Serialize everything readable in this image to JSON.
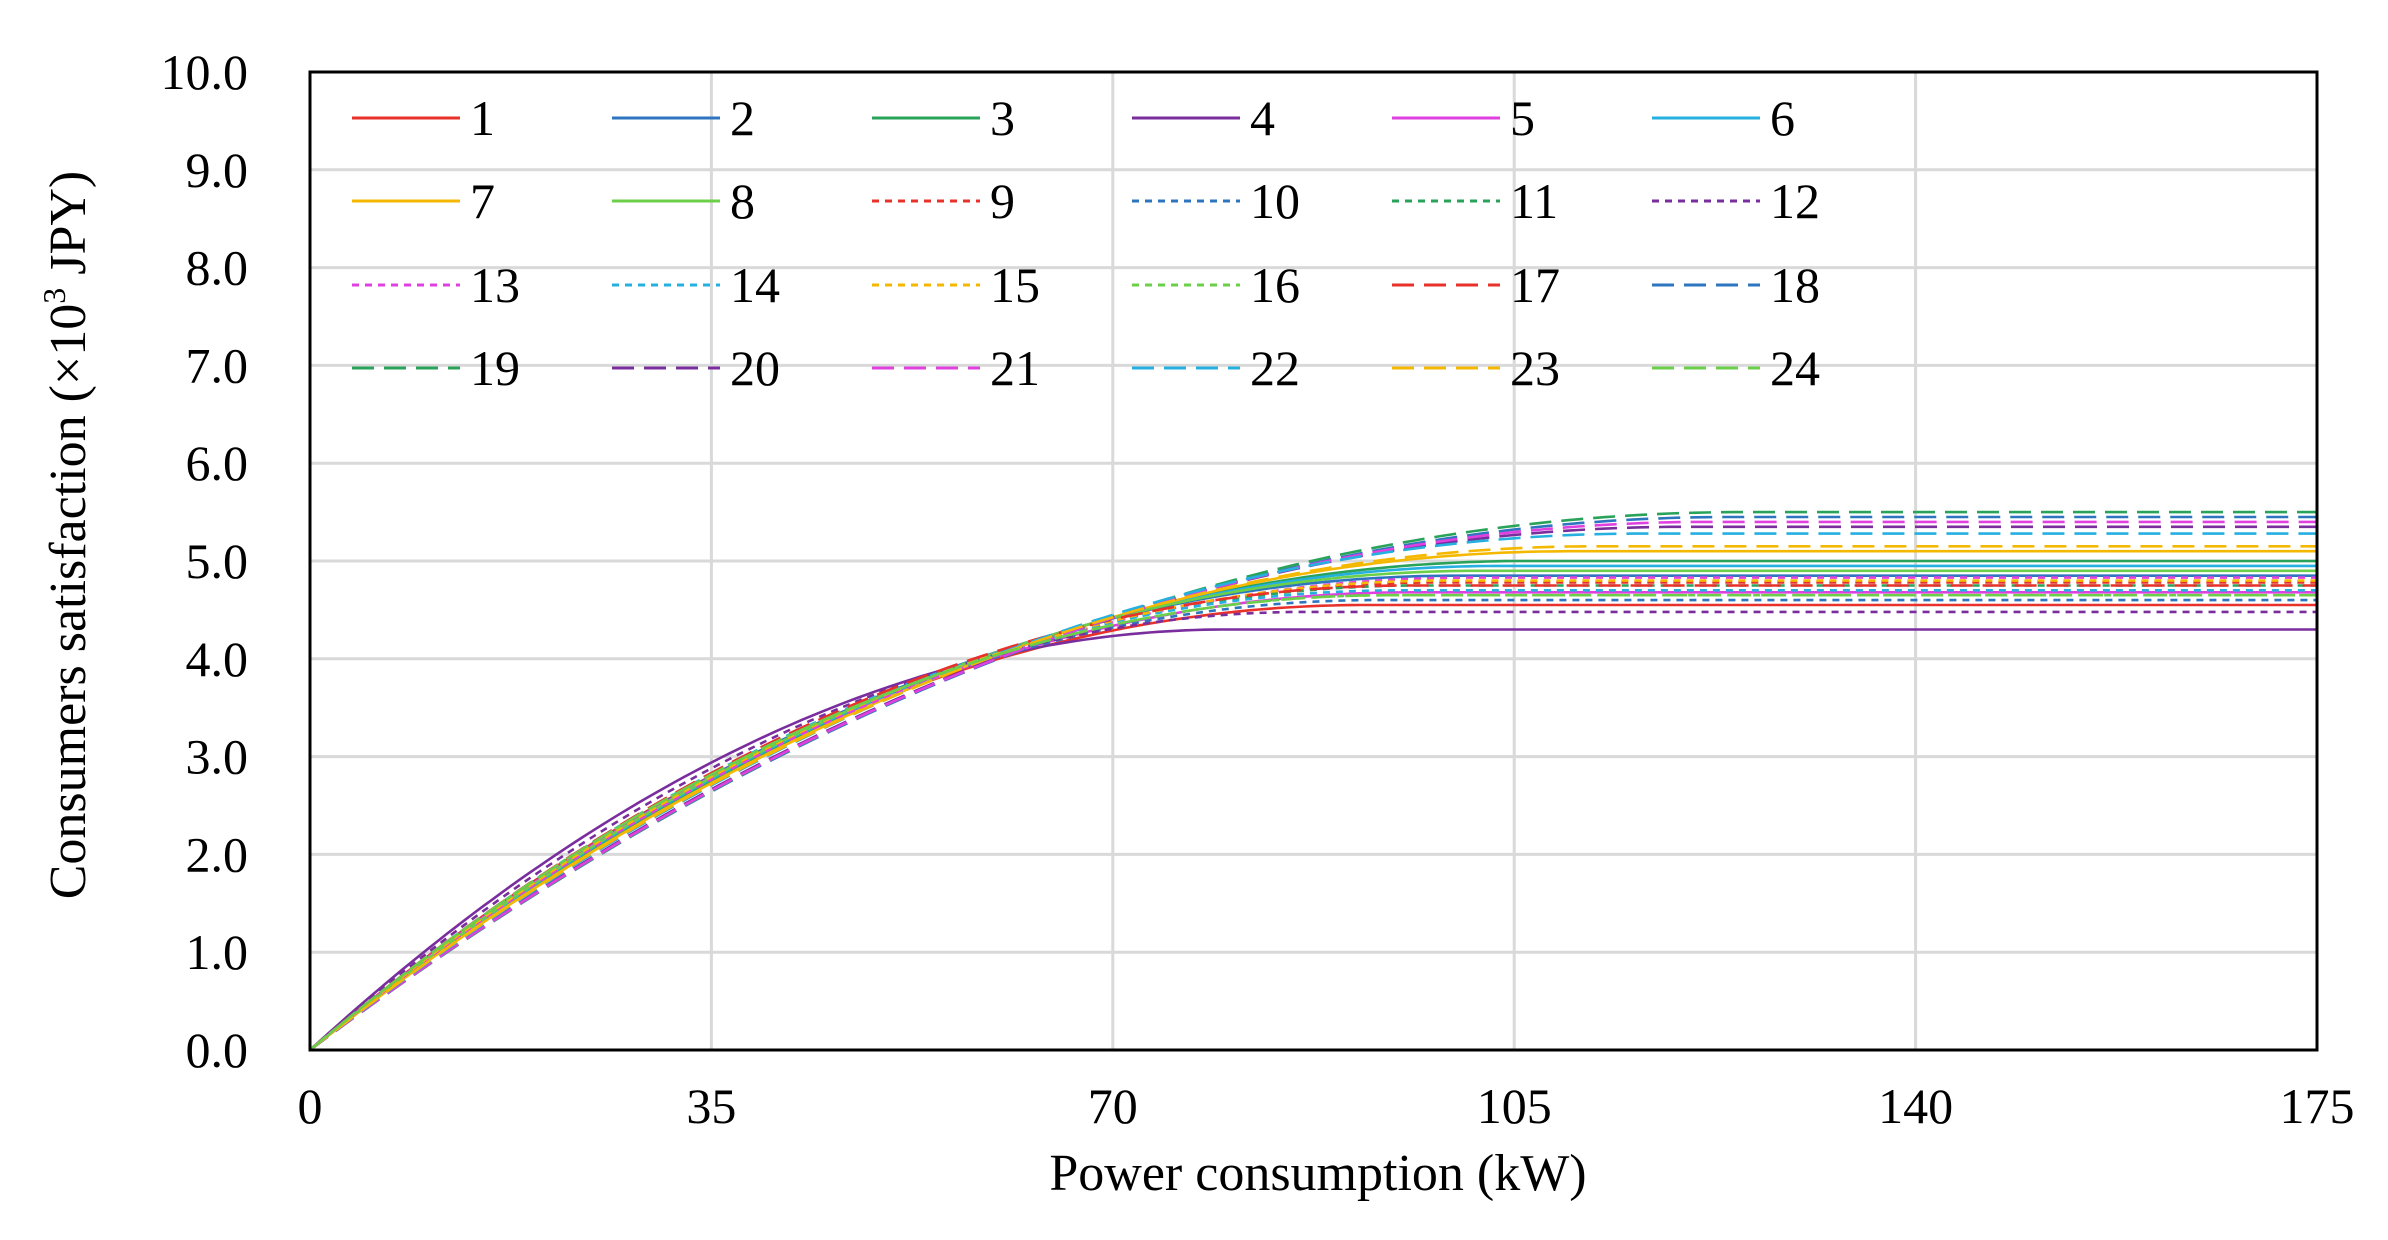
{
  "chart_data": {
    "type": "line",
    "title": "",
    "xlabel": "Power consumption (kW)",
    "ylabel_main": "Consumers satisfaction (×10",
    "ylabel_sup": "3",
    "ylabel_tail": " JPY)",
    "xlim": [
      0,
      175
    ],
    "ylim": [
      0,
      10
    ],
    "xticks": [
      0,
      35,
      70,
      105,
      140,
      175
    ],
    "xtick_labels": [
      "0",
      "35",
      "70",
      "105",
      "140",
      "175"
    ],
    "yticks": [
      0,
      1,
      2,
      3,
      4,
      5,
      6,
      7,
      8,
      9,
      10
    ],
    "ytick_labels": [
      "0.0",
      "1.0",
      "2.0",
      "3.0",
      "4.0",
      "5.0",
      "6.0",
      "7.0",
      "8.0",
      "9.0",
      "10.0"
    ],
    "grid": true,
    "legend_position": "top-left, inside, 6 columns",
    "curve_model": "quadratic rising to saturation: y = smax*(1-(1-x/xmax)^2) for x<=xmax, then y = smax",
    "series": [
      {
        "name": "1",
        "color": "#e8312a",
        "style": "solid",
        "xmax": 92,
        "smax": 4.55
      },
      {
        "name": "2",
        "color": "#2e75c0",
        "style": "solid",
        "xmax": 100,
        "smax": 4.85
      },
      {
        "name": "3",
        "color": "#2aa35a",
        "style": "solid",
        "xmax": 106,
        "smax": 5.0
      },
      {
        "name": "4",
        "color": "#7a2e9e",
        "style": "solid",
        "xmax": 80,
        "smax": 4.3
      },
      {
        "name": "5",
        "color": "#e040e0",
        "style": "solid",
        "xmax": 96,
        "smax": 4.68
      },
      {
        "name": "6",
        "color": "#25b0e0",
        "style": "solid",
        "xmax": 104,
        "smax": 4.95
      },
      {
        "name": "7",
        "color": "#f5b800",
        "style": "solid",
        "xmax": 110,
        "smax": 5.1
      },
      {
        "name": "8",
        "color": "#6ccf4a",
        "style": "solid",
        "xmax": 102,
        "smax": 4.9
      },
      {
        "name": "9",
        "color": "#e8312a",
        "style": "dotted",
        "xmax": 98,
        "smax": 4.78
      },
      {
        "name": "10",
        "color": "#2e75c0",
        "style": "dotted",
        "xmax": 93,
        "smax": 4.6
      },
      {
        "name": "11",
        "color": "#2aa35a",
        "style": "dotted",
        "xmax": 97,
        "smax": 4.75
      },
      {
        "name": "12",
        "color": "#7a2e9e",
        "style": "dotted",
        "xmax": 87,
        "smax": 4.48
      },
      {
        "name": "13",
        "color": "#e040e0",
        "style": "dotted",
        "xmax": 101,
        "smax": 4.83
      },
      {
        "name": "14",
        "color": "#25b0e0",
        "style": "dotted",
        "xmax": 95,
        "smax": 4.7
      },
      {
        "name": "15",
        "color": "#f5b800",
        "style": "dotted",
        "xmax": 99,
        "smax": 4.8
      },
      {
        "name": "16",
        "color": "#6ccf4a",
        "style": "dotted",
        "xmax": 94,
        "smax": 4.65
      },
      {
        "name": "17",
        "color": "#e8312a",
        "style": "dashed",
        "xmax": 96,
        "smax": 4.75
      },
      {
        "name": "18",
        "color": "#2e75c0",
        "style": "dashed",
        "xmax": 124,
        "smax": 5.45
      },
      {
        "name": "19",
        "color": "#2aa35a",
        "style": "dashed",
        "xmax": 125,
        "smax": 5.5
      },
      {
        "name": "20",
        "color": "#7a2e9e",
        "style": "dashed",
        "xmax": 120,
        "smax": 5.35
      },
      {
        "name": "21",
        "color": "#e040e0",
        "style": "dashed",
        "xmax": 122,
        "smax": 5.4
      },
      {
        "name": "22",
        "color": "#25b0e0",
        "style": "dashed",
        "xmax": 116,
        "smax": 5.28
      },
      {
        "name": "23",
        "color": "#f5b800",
        "style": "dashed",
        "xmax": 112,
        "smax": 5.15
      },
      {
        "name": "24",
        "color": "#6ccf4a",
        "style": "dashed",
        "xmax": 94,
        "smax": 4.65
      }
    ]
  }
}
